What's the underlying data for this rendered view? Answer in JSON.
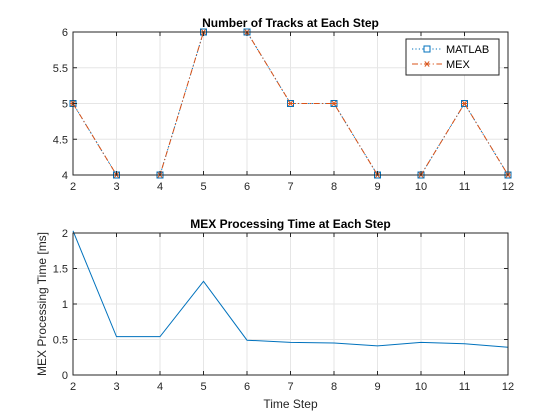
{
  "chart_data": [
    {
      "type": "line",
      "title": "Number of Tracks at Each Step",
      "xlabel": "",
      "ylabel": "",
      "xlim": [
        2,
        12
      ],
      "ylim": [
        4,
        6
      ],
      "xticks": [
        "2",
        "3",
        "4",
        "5",
        "6",
        "7",
        "8",
        "9",
        "10",
        "11",
        "12"
      ],
      "yticks": [
        "4",
        "4.5",
        "5",
        "5.5",
        "6"
      ],
      "grid": true,
      "legend_position": "top-right",
      "x": [
        2,
        3,
        4,
        5,
        6,
        7,
        8,
        9,
        10,
        11,
        12
      ],
      "series": [
        {
          "name": "MATLAB",
          "values": [
            5,
            4,
            4,
            6,
            6,
            5,
            5,
            4,
            4,
            5,
            4
          ],
          "color": "#0072BD",
          "line_style": "dotted",
          "marker": "square"
        },
        {
          "name": "MEX",
          "values": [
            5,
            4,
            4,
            6,
            6,
            5,
            5,
            4,
            4,
            5,
            4
          ],
          "color": "#D95319",
          "line_style": "dash-dot",
          "marker": "asterisk"
        }
      ]
    },
    {
      "type": "line",
      "title": "MEX Processing Time at Each Step",
      "xlabel": "Time Step",
      "ylabel": "MEX Processing Time [ms]",
      "xlim": [
        2,
        12
      ],
      "ylim": [
        0,
        2
      ],
      "xticks": [
        "2",
        "3",
        "4",
        "5",
        "6",
        "7",
        "8",
        "9",
        "10",
        "11",
        "12"
      ],
      "yticks": [
        "0",
        "0.5",
        "1",
        "1.5",
        "2"
      ],
      "grid": true,
      "x": [
        2,
        3,
        4,
        5,
        6,
        7,
        8,
        9,
        10,
        11,
        12
      ],
      "series": [
        {
          "values": [
            2.03,
            0.54,
            0.54,
            1.32,
            0.49,
            0.46,
            0.45,
            0.41,
            0.46,
            0.44,
            0.39
          ],
          "color": "#0072BD",
          "line_style": "solid"
        }
      ]
    }
  ]
}
